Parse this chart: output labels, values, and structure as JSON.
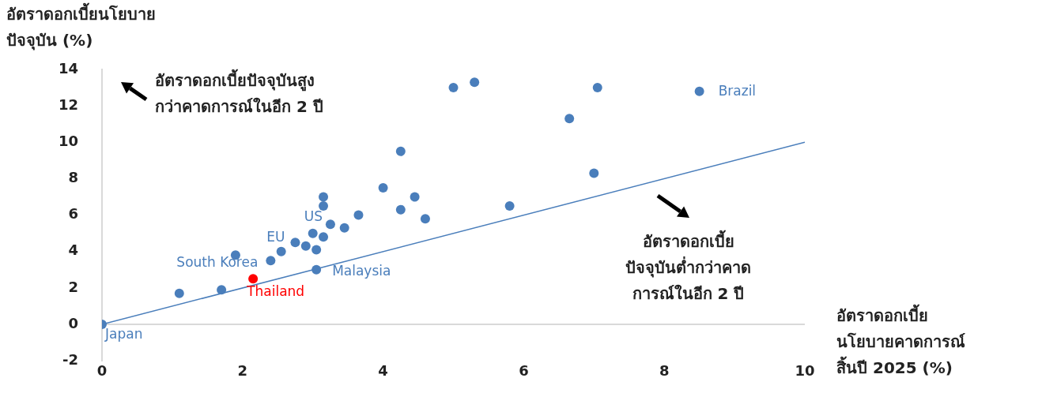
{
  "chart_data": {
    "type": "scatter",
    "xlabel": "อัตราดอกเบี้ยนโยบายคาดการณ์สิ้นปี 2025 (%)",
    "ylabel": "อัตราดอกเบี้ยนโยบายปัจจุบัน (%)",
    "annotations": [
      "อัตราดอกเบี้ยปัจจุบันสูงกว่าคาดการณ์ในอีก 2 ปี",
      "อัตราดอกเบี้ยปัจจุบันต่ำกว่าคาดการณ์ในอีก 2 ปี"
    ],
    "xlim": [
      0,
      10
    ],
    "xticks": [
      0,
      2,
      4,
      6,
      8,
      10
    ],
    "ylim": [
      -2,
      14
    ],
    "yticks": [
      -2,
      0,
      2,
      4,
      6,
      8,
      10,
      12,
      14
    ],
    "grid": false,
    "legend": false,
    "marker": "circle",
    "ref_lines": [
      {
        "axis": "y",
        "value": 0,
        "color": "#d9d9d9"
      }
    ],
    "series": [
      {
        "type": "line",
        "color": "#4a7ebb",
        "x": [
          0,
          10
        ],
        "values": [
          0,
          10
        ],
        "marker": "none"
      },
      {
        "color": "#4a7ebb",
        "x": [
          1.1,
          1.7,
          1.9,
          2.55,
          2.9,
          3.05,
          3.0,
          3.15,
          3.15,
          3.15,
          3.45,
          3.65,
          4.0,
          4.25,
          4.25,
          4.45,
          4.6,
          5.0,
          5.3,
          5.8,
          6.65,
          7.0,
          7.05
        ],
        "values": [
          1.7,
          1.9,
          3.8,
          4.0,
          4.3,
          4.1,
          5.0,
          4.8,
          6.5,
          7.0,
          5.3,
          6.0,
          7.5,
          6.3,
          9.5,
          7.0,
          5.8,
          13.0,
          13.3,
          6.5,
          11.3,
          8.3,
          13.0
        ]
      },
      {
        "name": "Japan",
        "color": "#4a7ebb",
        "x": [
          0
        ],
        "values": [
          0
        ]
      },
      {
        "name": "South Korea",
        "color": "#4a7ebb",
        "x": [
          2.4
        ],
        "values": [
          3.5
        ]
      },
      {
        "name": "EU",
        "color": "#4a7ebb",
        "x": [
          2.75
        ],
        "values": [
          4.5
        ]
      },
      {
        "name": "US",
        "color": "#4a7ebb",
        "x": [
          3.25
        ],
        "values": [
          5.5
        ]
      },
      {
        "name": "Malaysia",
        "color": "#4a7ebb",
        "x": [
          3.05
        ],
        "values": [
          3.0
        ]
      },
      {
        "name": "Thailand",
        "color": "#ff0000",
        "x": [
          2.15
        ],
        "values": [
          2.5
        ]
      },
      {
        "name": "Brazil",
        "color": "#4a7ebb",
        "x": [
          8.5
        ],
        "values": [
          12.8
        ]
      }
    ]
  }
}
